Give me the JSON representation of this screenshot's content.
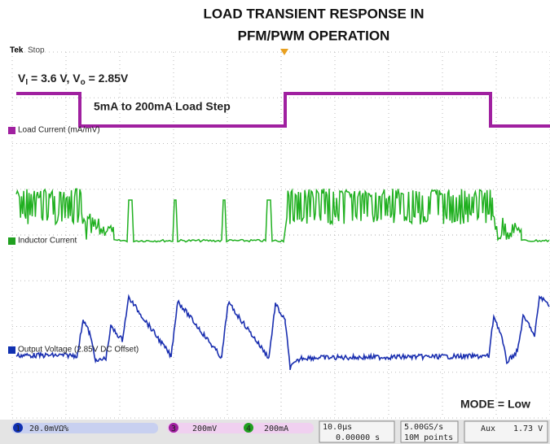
{
  "title_lines": [
    "LOAD TRANSIENT RESPONSE IN",
    "PFM/PWM OPERATION"
  ],
  "scope": {
    "brand": "Tek",
    "state": "Stop"
  },
  "annotations": {
    "conditions": [
      "V",
      "I",
      " = 3.6 V, V",
      "o",
      " = 2.85V"
    ],
    "load_step": "5mA to 200mA Load Step",
    "mode": "MODE = Low"
  },
  "traces": [
    {
      "channel": "3",
      "label": "Load Current (mA/mV)"
    },
    {
      "channel": "4",
      "label": "Inductor Current"
    },
    {
      "channel": "1",
      "label": "Output Voltage (2.85V DC Offset)"
    }
  ],
  "status_bar": {
    "ch1": "1",
    "ch1_scale": "20.0mVΩ%",
    "ch3": "3",
    "ch3_scale": "200mV",
    "ch4": "4",
    "ch4_scale": "200mA",
    "timebase": "10.0µs",
    "delay": "0.00000 s",
    "sample_rate": "5.00GS/s",
    "record": "10M points",
    "trigger_source": "Aux",
    "trigger_level": "1.73 V"
  }
}
